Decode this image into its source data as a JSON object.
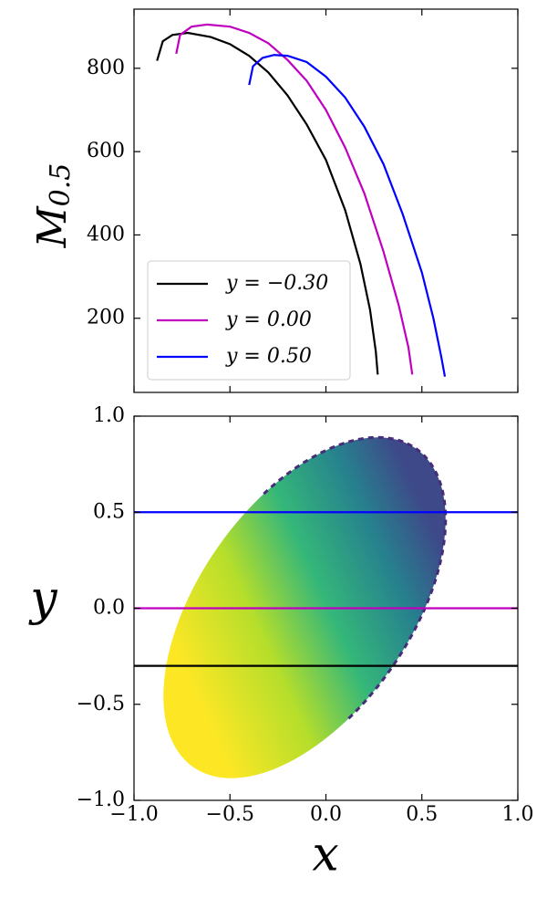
{
  "chart_data": [
    {
      "type": "line",
      "ylabel": "M",
      "ylabel_sub": "0.5",
      "xlim": [
        -1,
        1
      ],
      "xticks": [
        -1,
        -0.5,
        0,
        0.5,
        1
      ],
      "ylim": [
        22,
        942
      ],
      "yticks": [
        200,
        400,
        600,
        800
      ],
      "legend": "lower left",
      "series": [
        {
          "name": "y = −0.30",
          "color": "#000000",
          "x": [
            -0.88,
            -0.85,
            -0.8,
            -0.72,
            -0.6,
            -0.5,
            -0.4,
            -0.3,
            -0.2,
            -0.1,
            0.0,
            0.1,
            0.18,
            0.23,
            0.26,
            0.27
          ],
          "values": [
            818,
            865,
            880,
            885,
            875,
            858,
            830,
            790,
            735,
            665,
            580,
            460,
            330,
            220,
            120,
            65
          ]
        },
        {
          "name": "y = 0.00",
          "color": "#bf00bf",
          "x": [
            -0.78,
            -0.76,
            -0.7,
            -0.62,
            -0.5,
            -0.4,
            -0.3,
            -0.2,
            -0.1,
            0.0,
            0.1,
            0.2,
            0.3,
            0.38,
            0.43,
            0.45
          ],
          "values": [
            835,
            880,
            900,
            905,
            900,
            885,
            860,
            820,
            770,
            700,
            610,
            500,
            360,
            230,
            130,
            65
          ]
        },
        {
          "name": "y = 0.50",
          "color": "#0000ff",
          "x": [
            -0.4,
            -0.38,
            -0.33,
            -0.27,
            -0.2,
            -0.1,
            0.0,
            0.1,
            0.2,
            0.3,
            0.4,
            0.5,
            0.56,
            0.6,
            0.62
          ],
          "values": [
            760,
            805,
            825,
            832,
            830,
            815,
            780,
            730,
            660,
            570,
            450,
            310,
            200,
            110,
            60
          ]
        }
      ]
    },
    {
      "type": "hline",
      "xlabel": "x",
      "ylabel": "y",
      "xlim": [
        -1,
        1
      ],
      "xticks": [
        {
          "value": -1,
          "label": "−1.0"
        },
        {
          "value": -0.5,
          "label": "−0.5"
        },
        {
          "value": 0,
          "label": "0.0"
        },
        {
          "value": 0.5,
          "label": "0.5"
        },
        {
          "value": 1,
          "label": "1.0"
        }
      ],
      "ylim": [
        -1,
        1
      ],
      "yticks": [
        {
          "value": -1,
          "label": "−1.0"
        },
        {
          "value": -0.5,
          "label": "−0.5"
        },
        {
          "value": 0,
          "label": "0.0"
        },
        {
          "value": 0.5,
          "label": "0.5"
        },
        {
          "value": 1,
          "label": "1.0"
        }
      ],
      "series": [
        {
          "color": "#000000",
          "values": [
            -0.3
          ]
        },
        {
          "color": "#bf00bf",
          "values": [
            0
          ]
        },
        {
          "color": "#0000ff",
          "values": [
            0.5
          ]
        }
      ]
    }
  ]
}
